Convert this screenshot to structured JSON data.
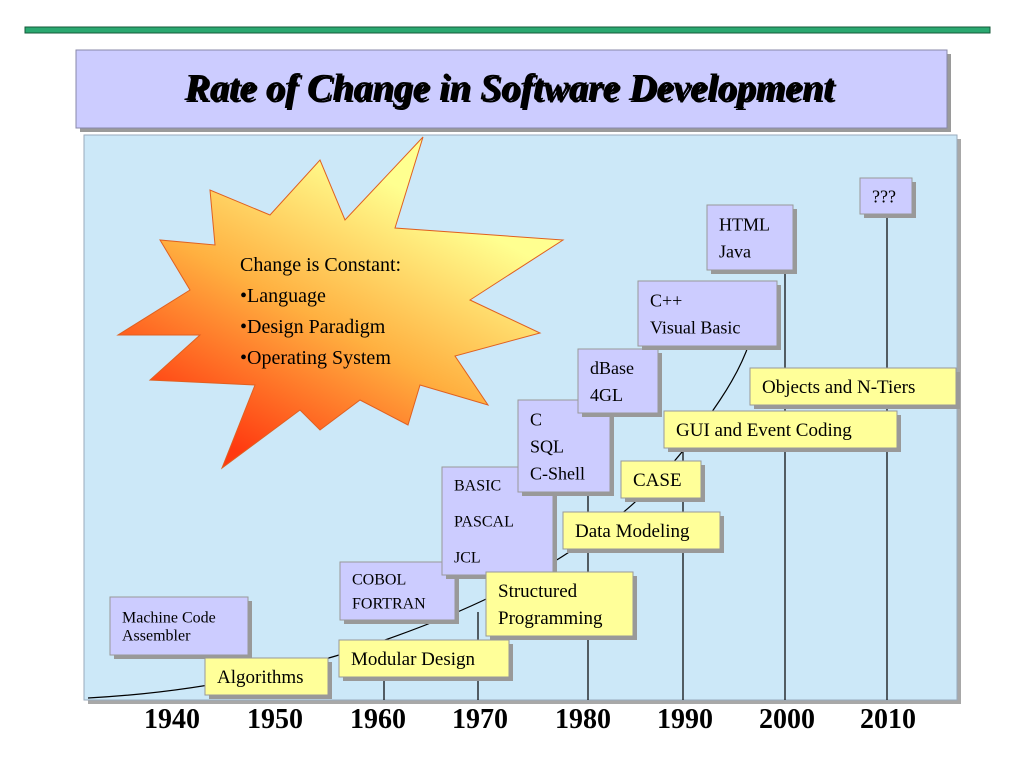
{
  "title": "Rate of Change in Software Development",
  "starburst": {
    "heading": "Change is Constant:",
    "bullets": [
      "•Language",
      "•Design Paradigm",
      "•Operating System"
    ]
  },
  "language_boxes": [
    {
      "lines": [
        "Machine Code",
        "Assembler"
      ]
    },
    {
      "lines": [
        "COBOL",
        "FORTRAN"
      ]
    },
    {
      "lines": [
        "BASIC",
        "PASCAL",
        "JCL"
      ]
    },
    {
      "lines": [
        "C",
        "SQL",
        "C-Shell"
      ]
    },
    {
      "lines": [
        "dBase",
        "4GL"
      ]
    },
    {
      "lines": [
        "C++",
        "Visual Basic"
      ]
    },
    {
      "lines": [
        "HTML",
        "Java"
      ]
    },
    {
      "lines": [
        "???"
      ]
    }
  ],
  "method_boxes": [
    {
      "lines": [
        "Algorithms"
      ]
    },
    {
      "lines": [
        "Modular Design"
      ]
    },
    {
      "lines": [
        "Structured",
        "Programming"
      ]
    },
    {
      "lines": [
        "Data Modeling"
      ]
    },
    {
      "lines": [
        "CASE"
      ]
    },
    {
      "lines": [
        "GUI and Event Coding"
      ]
    },
    {
      "lines": [
        "Objects and N-Tiers"
      ]
    }
  ],
  "years": [
    "1940",
    "1950",
    "1960",
    "1970",
    "1980",
    "1990",
    "2000",
    "2010"
  ]
}
